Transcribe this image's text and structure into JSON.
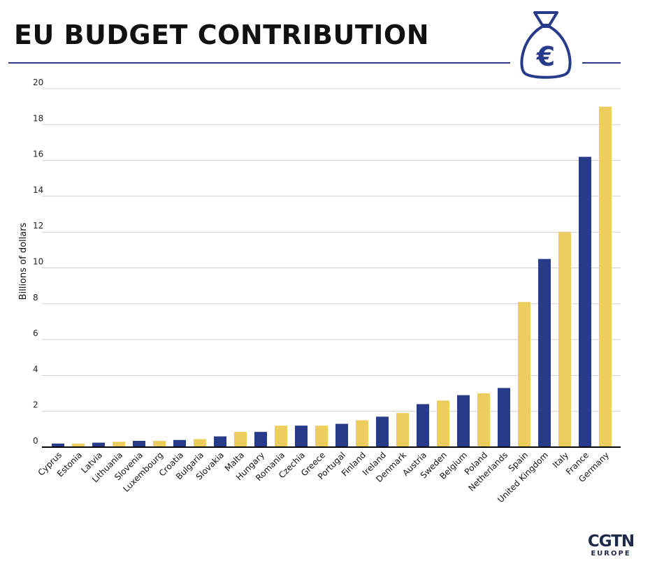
{
  "title": "EU BUDGET CONTRIBUTION",
  "icon": "money-bag-euro-icon",
  "icon_symbol": "€",
  "logo": {
    "main": "CGTN",
    "sub": "EUROPE"
  },
  "colors": {
    "navy": "#283a8a",
    "yellow": "#edcd5e",
    "rule": "#2b3d8e"
  },
  "chart_data": {
    "type": "bar",
    "title": "EU BUDGET CONTRIBUTION",
    "xlabel": "",
    "ylabel": "Billions of dollars",
    "ylim": [
      0,
      20
    ],
    "yticks": [
      0,
      2,
      4,
      6,
      8,
      10,
      12,
      14,
      16,
      18,
      20
    ],
    "grid": true,
    "legend": "none",
    "categories": [
      "Cyprus",
      "Estonia",
      "Latvia",
      "Lithuania",
      "Slovenia",
      "Luxembourg",
      "Croatia",
      "Bulgaria",
      "Slovakia",
      "Malta",
      "Hungary",
      "Romania",
      "Czechia",
      "Greece",
      "Portugal",
      "Finland",
      "Ireland",
      "Denmark",
      "Austria",
      "Sweden",
      "Belgium",
      "Poland",
      "Netherlands",
      "Spain",
      "United Kingdom",
      "Italy",
      "France",
      "Germany"
    ],
    "values": [
      0.2,
      0.2,
      0.25,
      0.3,
      0.35,
      0.35,
      0.4,
      0.45,
      0.6,
      0.85,
      0.85,
      1.2,
      1.2,
      1.2,
      1.3,
      1.5,
      1.7,
      1.9,
      2.4,
      2.6,
      2.9,
      3.0,
      3.3,
      8.1,
      10.5,
      12.0,
      16.2,
      19.0
    ],
    "bar_colors": [
      "navy",
      "yellow",
      "navy",
      "yellow",
      "navy",
      "yellow",
      "navy",
      "yellow",
      "navy",
      "yellow",
      "navy",
      "yellow",
      "navy",
      "yellow",
      "navy",
      "yellow",
      "navy",
      "yellow",
      "navy",
      "yellow",
      "navy",
      "yellow",
      "navy",
      "yellow",
      "navy",
      "yellow",
      "navy",
      "yellow"
    ]
  }
}
